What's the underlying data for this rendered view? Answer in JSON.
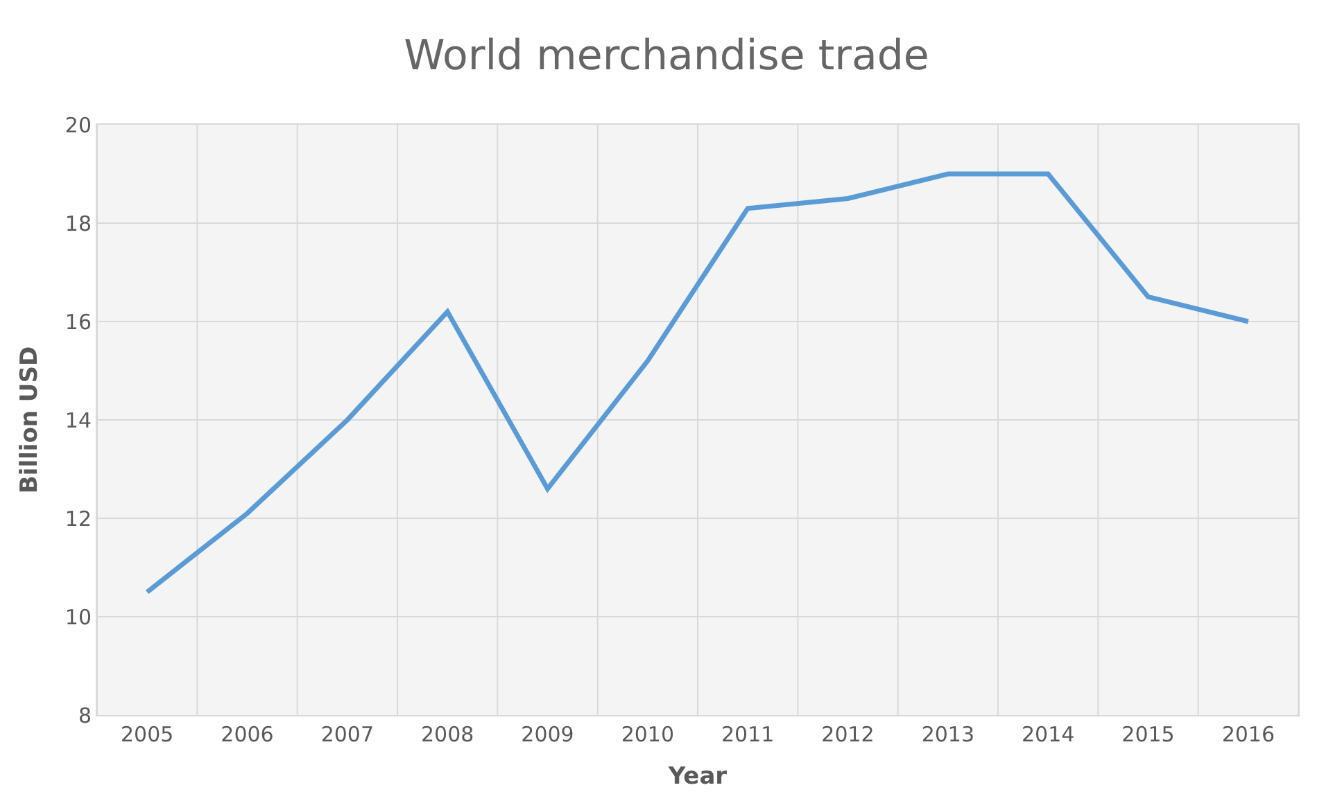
{
  "chart_data": {
    "type": "line",
    "title": "World merchandise trade",
    "xlabel": "Year",
    "ylabel": "Billion USD",
    "categories": [
      "2005",
      "2006",
      "2007",
      "2008",
      "2009",
      "2010",
      "2011",
      "2012",
      "2013",
      "2014",
      "2015",
      "2016"
    ],
    "series": [
      {
        "color": "#5b9bd5",
        "values": [
          10.5,
          12.1,
          14.0,
          16.2,
          12.6,
          15.2,
          18.3,
          18.5,
          19.0,
          19.0,
          16.5,
          16.0
        ]
      }
    ],
    "ylim": [
      8,
      20
    ],
    "yticks": [
      8,
      10,
      12,
      14,
      16,
      18,
      20
    ],
    "grid": true,
    "marker": "none",
    "line_style": "solid"
  }
}
